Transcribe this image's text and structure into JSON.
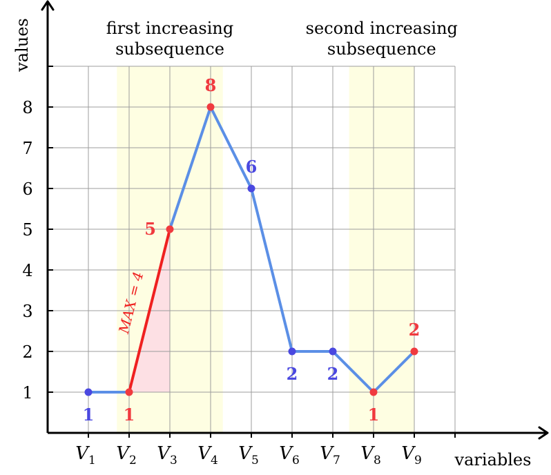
{
  "chart_data": {
    "type": "line",
    "xlabel": "variables",
    "ylabel": "values",
    "categories": [
      {
        "name": "V",
        "sub": "1"
      },
      {
        "name": "V",
        "sub": "2"
      },
      {
        "name": "V",
        "sub": "3"
      },
      {
        "name": "V",
        "sub": "4"
      },
      {
        "name": "V",
        "sub": "5"
      },
      {
        "name": "V",
        "sub": "6"
      },
      {
        "name": "V",
        "sub": "7"
      },
      {
        "name": "V",
        "sub": "8"
      },
      {
        "name": "V",
        "sub": "9"
      }
    ],
    "values": [
      1,
      1,
      5,
      8,
      6,
      2,
      2,
      1,
      2
    ],
    "yticks": [
      "1",
      "2",
      "3",
      "4",
      "5",
      "6",
      "7",
      "8"
    ],
    "ylim": [
      0,
      9
    ],
    "xlim": [
      0,
      10
    ],
    "grid": true,
    "point_labels": [
      {
        "index": 0,
        "text": "1",
        "position": "below",
        "color": "blue"
      },
      {
        "index": 1,
        "text": "1",
        "position": "below",
        "color": "red"
      },
      {
        "index": 2,
        "text": "5",
        "position": "left",
        "color": "red"
      },
      {
        "index": 3,
        "text": "8",
        "position": "above",
        "color": "red"
      },
      {
        "index": 4,
        "text": "6",
        "position": "above",
        "color": "blue"
      },
      {
        "index": 5,
        "text": "2",
        "position": "below",
        "color": "blue"
      },
      {
        "index": 6,
        "text": "2",
        "position": "below",
        "color": "blue"
      },
      {
        "index": 7,
        "text": "1",
        "position": "below",
        "color": "red"
      },
      {
        "index": 8,
        "text": "2",
        "position": "above",
        "color": "red"
      }
    ],
    "highlight_regions": [
      {
        "from": 1.7,
        "to": 4.3,
        "label_lines": [
          "first increasing",
          "subsequence"
        ]
      },
      {
        "from": 7.4,
        "to": 9.0,
        "label_lines": [
          "second increasing",
          "subsequence"
        ]
      }
    ],
    "point_colors": [
      "blue",
      "red",
      "red",
      "red",
      "blue",
      "blue",
      "blue",
      "red",
      "red"
    ],
    "max_segment": {
      "from_index": 1,
      "to_index": 2,
      "label": "MAX = 4"
    }
  },
  "colors": {
    "blue": "#4a48e0",
    "red": "#f03a3f",
    "line": "#5b8fe6",
    "max_line": "#ef2020",
    "triangle": "#fde0e4",
    "region": "#fefee2",
    "grid": "#9c9c9c",
    "axis": "#000000"
  }
}
